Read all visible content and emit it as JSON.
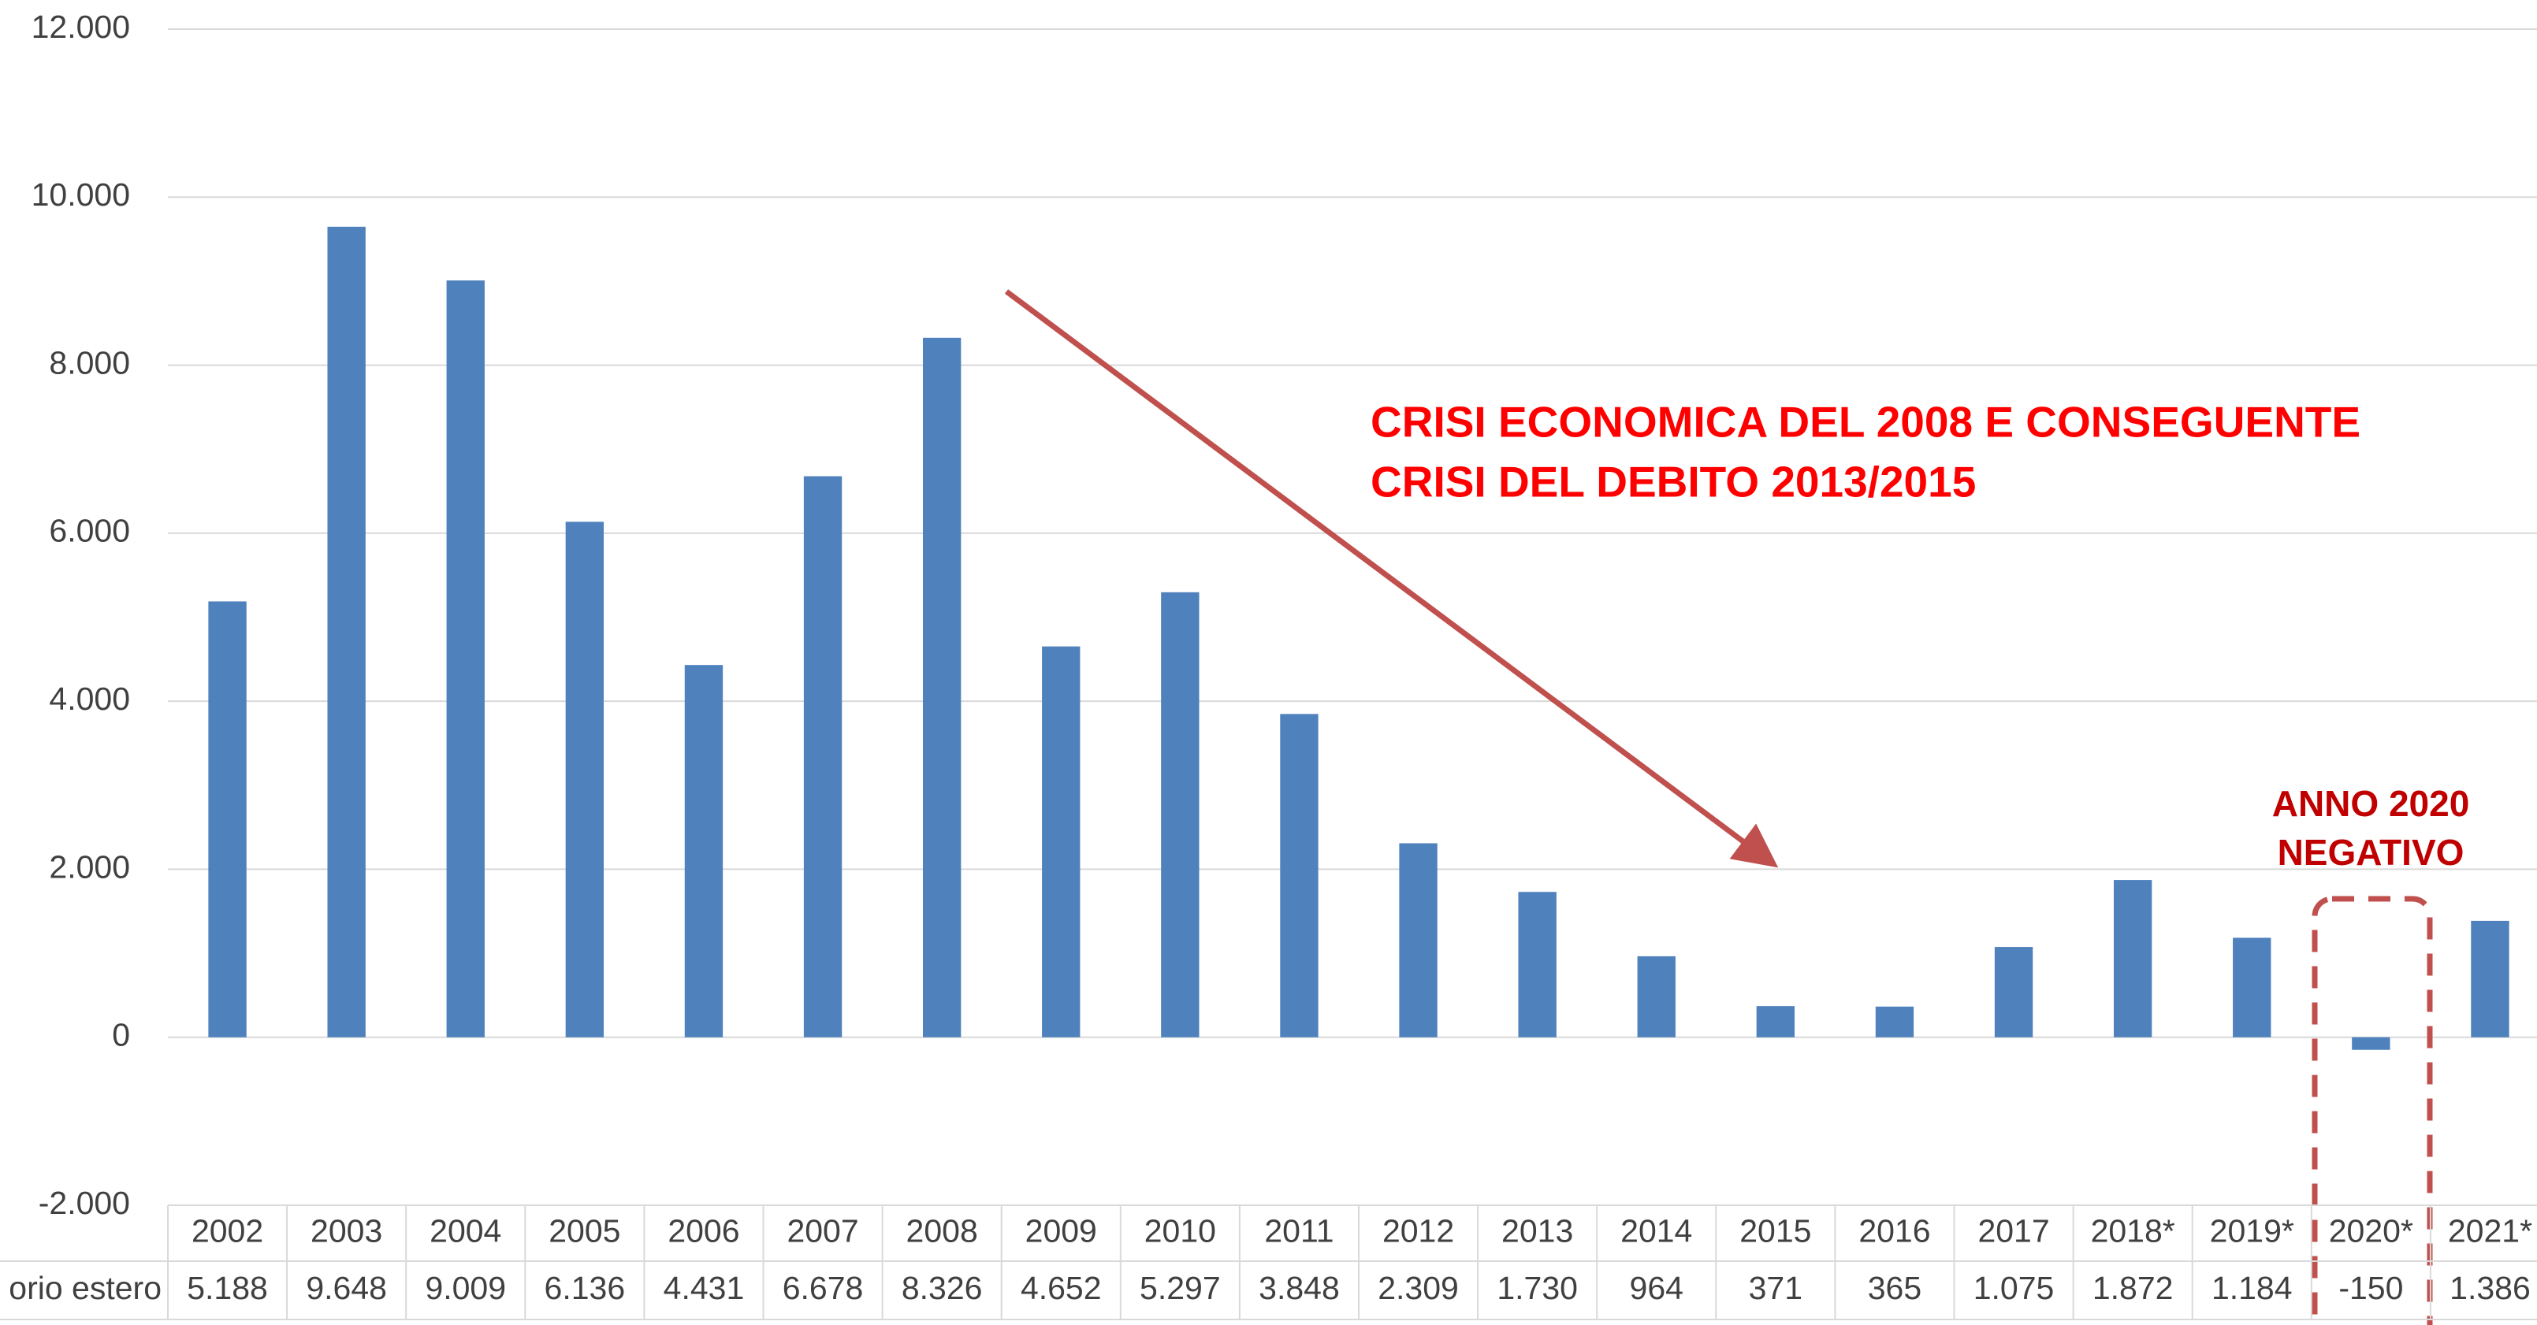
{
  "chart_data": {
    "type": "bar",
    "categories": [
      "2002",
      "2003",
      "2004",
      "2005",
      "2006",
      "2007",
      "2008",
      "2009",
      "2010",
      "2011",
      "2012",
      "2013",
      "2014",
      "2015",
      "2016",
      "2017",
      "2018*",
      "2019*",
      "2020*",
      "2021*"
    ],
    "values": [
      5188,
      9648,
      9009,
      6136,
      4431,
      6678,
      8326,
      4652,
      5297,
      3848,
      2309,
      1730,
      964,
      371,
      365,
      1075,
      1872,
      1184,
      -150,
      1386
    ],
    "value_labels": [
      "5.188",
      "9.648",
      "9.009",
      "6.136",
      "4.431",
      "6.678",
      "8.326",
      "4.652",
      "5.297",
      "3.848",
      "2.309",
      "1.730",
      "964",
      "371",
      "365",
      "1.075",
      "1.872",
      "1.184",
      "-150",
      "1.386"
    ],
    "row_label": "orio estero",
    "color": "#4f81bd",
    "ylim": [
      -2000,
      12000
    ],
    "yticks": [
      {
        "value": -2000,
        "label": "-2.000"
      },
      0,
      {
        "value": 2000,
        "label": "2.000"
      },
      {
        "value": 4000,
        "label": "4.000"
      },
      {
        "value": 6000,
        "label": "6.000"
      },
      {
        "value": 8000,
        "label": "8.000"
      },
      {
        "value": 10000,
        "label": "10.000"
      },
      {
        "value": 12000,
        "label": "12.000"
      }
    ],
    "grid": true,
    "annotations": [
      "CRISI ECONOMICA DEL 2008 E CONSEGUENTE",
      "CRISI DEL DEBITO 2013/2015",
      "ANNO 2020",
      "NEGATIVO"
    ]
  }
}
